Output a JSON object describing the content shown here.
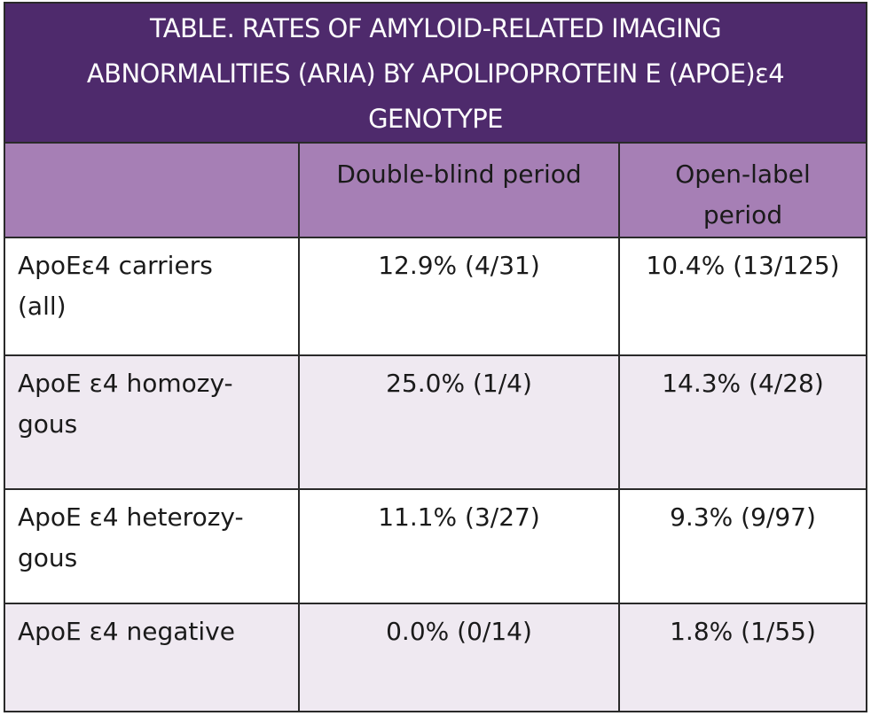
{
  "title": "TABLE. RATES OF AMYLOID-RELATED IMAGING\nABNORMALITIES (ARIA) BY APOLIPOPROTEIN E (APOE)ε4\nGENOTYPE",
  "columns": [
    "",
    "Double-blind period",
    "Open-label\nperiod"
  ],
  "rows": [
    {
      "label": "ApoEε4 carriers\n(all)",
      "double_blind": "12.9% (4/31)",
      "open_label": "10.4% (13/125)"
    },
    {
      "label": "ApoE ε4 homozy-\ngous",
      "double_blind": "25.0% (1/4)",
      "open_label": "14.3% (4/28)"
    },
    {
      "label": "ApoE ε4 heterozy-\ngous",
      "double_blind": "11.1% (3/27)",
      "open_label": "9.3% (9/97)"
    },
    {
      "label": "ApoE ε4 negative",
      "double_blind": "0.0% (0/14)",
      "open_label": "1.8% (1/55)"
    }
  ],
  "colors": {
    "title_bg": "#4e2a6c",
    "header_bg": "#a67fb5",
    "row_alt_bg": "#efe9f1",
    "border": "#2a2a2a"
  }
}
